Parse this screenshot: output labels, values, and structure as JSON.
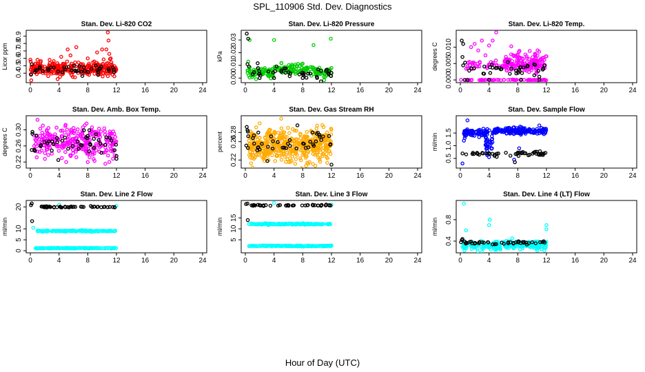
{
  "figure": {
    "title": "SPL_110906  Std. Dev. Diagnostics",
    "xlabel": "Hour of Day (UTC)"
  },
  "chart_data": [
    {
      "type": "scatter",
      "title": "Stan. Dev. Li-820 CO2",
      "ylabel": "Licor ppm",
      "xlim": [
        0,
        24
      ],
      "ylim": [
        0.3,
        0.95
      ],
      "xticks": [
        "0",
        "4",
        "8",
        "12",
        "16",
        "20",
        "24"
      ],
      "yticks": [
        {
          "v": 0.4,
          "label": "0.4"
        },
        {
          "v": 0.5,
          "label": "0.5"
        },
        {
          "v": 0.6,
          "label": "0.6"
        },
        {
          "v": 0.7,
          "label": "0.7"
        },
        {
          "v": 0.8,
          "label": "0.8"
        },
        {
          "v": 0.9,
          "label": "0.9"
        }
      ],
      "series": [
        {
          "name": "colored",
          "color": "#ff0000",
          "clusters": [
            {
              "x0": 0,
              "x1": 12,
              "y": 0.46,
              "sd": 0.045,
              "n": 300
            }
          ],
          "points": [
            [
              1.0,
              0.58
            ],
            [
              2.5,
              0.36
            ],
            [
              4.3,
              0.62
            ],
            [
              5.2,
              0.72
            ],
            [
              5.6,
              0.64
            ],
            [
              6.4,
              0.75
            ],
            [
              8.0,
              0.6
            ],
            [
              9.3,
              0.68
            ],
            [
              10.0,
              0.72
            ],
            [
              10.6,
              0.72
            ],
            [
              10.8,
              0.95
            ],
            [
              10.9,
              0.84
            ],
            [
              11.0,
              0.66
            ],
            [
              11.2,
              0.6
            ],
            [
              3.8,
              0.32
            ]
          ]
        },
        {
          "name": "black",
          "color": "#000000",
          "clusters": [
            {
              "x0": 0,
              "x1": 12,
              "y": 0.45,
              "sd": 0.03,
              "n": 40
            }
          ],
          "points": [
            [
              0.1,
              0.38
            ],
            [
              0.2,
              0.52
            ]
          ]
        }
      ]
    },
    {
      "type": "scatter",
      "title": "Stan. Dev. Li-820 Pressure",
      "ylabel": "kPa",
      "xlim": [
        0,
        24
      ],
      "ylim": [
        -0.002,
        0.036
      ],
      "xticks": [
        "0",
        "4",
        "8",
        "12",
        "16",
        "20",
        "24"
      ],
      "yticks": [
        {
          "v": 0.0,
          "label": "0.00"
        },
        {
          "v": 0.01,
          "label": "0.01"
        },
        {
          "v": 0.02,
          "label": "0.02"
        },
        {
          "v": 0.03,
          "label": "0.03"
        }
      ],
      "series": [
        {
          "name": "colored",
          "color": "#00cc00",
          "clusters": [
            {
              "x0": 0.3,
              "x1": 4,
              "y": 0.004,
              "sd": 0.002,
              "n": 60
            },
            {
              "x0": 4,
              "x1": 9.5,
              "y": 0.007,
              "sd": 0.002,
              "n": 90
            },
            {
              "x0": 9.5,
              "x1": 12,
              "y": 0.004,
              "sd": 0.002,
              "n": 40
            }
          ],
          "points": [
            [
              0.4,
              0.013
            ],
            [
              0.6,
              0.03
            ],
            [
              4.0,
              0.03
            ],
            [
              6.5,
              0.009
            ],
            [
              9.5,
              0.026
            ],
            [
              11.9,
              0.031
            ],
            [
              12.0,
              0.008
            ]
          ]
        },
        {
          "name": "black",
          "color": "#000000",
          "clusters": [
            {
              "x0": 0.5,
              "x1": 12,
              "y": 0.004,
              "sd": 0.0025,
              "n": 40
            }
          ],
          "points": [
            [
              0.2,
              0.035
            ],
            [
              0.4,
              0.031
            ],
            [
              0.3,
              0.011
            ],
            [
              0.5,
              0.009
            ],
            [
              2.0,
              0.0
            ],
            [
              4.0,
              0.0
            ],
            [
              8.0,
              0.0
            ],
            [
              10.0,
              0.0
            ],
            [
              12.0,
              0.004
            ]
          ]
        }
      ]
    },
    {
      "type": "scatter",
      "title": "Stan. Dev. Li-820 Temp.",
      "ylabel": "degrees C",
      "xlim": [
        0,
        24
      ],
      "ylim": [
        -0.0002,
        0.0145
      ],
      "xticks": [
        "0",
        "4",
        "8",
        "12",
        "16",
        "20",
        "24"
      ],
      "yticks": [
        {
          "v": 0.0,
          "label": "0.000"
        },
        {
          "v": 0.005,
          "label": "0.005"
        },
        {
          "v": 0.01,
          "label": "0.010"
        }
      ],
      "series": [
        {
          "name": "colored",
          "color": "#ff00ff",
          "clusters": [
            {
              "x0": 0.8,
              "x1": 12,
              "y": 0.0045,
              "sd": 0.0006,
              "n": 90
            },
            {
              "x0": 6,
              "x1": 12,
              "y": 0.0055,
              "sd": 0.0015,
              "n": 120
            },
            {
              "x0": 0,
              "x1": 12,
              "y": 0.0,
              "sd": 5e-05,
              "n": 70
            }
          ],
          "points": [
            [
              1.5,
              0.01
            ],
            [
              2.0,
              0.011
            ],
            [
              3.0,
              0.012
            ],
            [
              3.5,
              0.0075
            ],
            [
              4.0,
              0.0105
            ],
            [
              5.0,
              0.0145
            ],
            [
              4.5,
              0.012
            ],
            [
              2.5,
              0.009
            ]
          ]
        },
        {
          "name": "black",
          "color": "#000000",
          "clusters": [
            {
              "x0": 0,
              "x1": 12,
              "y": 0.0035,
              "sd": 0.0012,
              "n": 40
            }
          ],
          "points": [
            [
              0.2,
              0.012
            ],
            [
              0.4,
              0.011
            ],
            [
              0.3,
              0.007
            ],
            [
              0.6,
              0.0
            ],
            [
              11.0,
              0.0
            ],
            [
              1.0,
              0.0
            ],
            [
              4.0,
              0.0
            ]
          ]
        }
      ]
    },
    {
      "type": "scatter",
      "title": "Stan. Dev. Amb. Box Temp.",
      "ylabel": "degrees C",
      "xlim": [
        0,
        24
      ],
      "ylim": [
        0.21,
        0.33
      ],
      "xticks": [
        "0",
        "4",
        "8",
        "12",
        "16",
        "20",
        "24"
      ],
      "yticks": [
        {
          "v": 0.22,
          "label": "0.22"
        },
        {
          "v": 0.26,
          "label": "0.26"
        },
        {
          "v": 0.3,
          "label": "0.30"
        }
      ],
      "series": [
        {
          "name": "colored",
          "color": "#ff00ff",
          "clusters": [
            {
              "x0": 0.5,
              "x1": 12,
              "y": 0.268,
              "sd": 0.02,
              "n": 280
            }
          ],
          "points": [
            [
              1.0,
              0.325
            ],
            [
              5.0,
              0.22
            ],
            [
              8.0,
              0.22
            ],
            [
              11.0,
              0.22
            ]
          ]
        },
        {
          "name": "black",
          "color": "#000000",
          "clusters": [
            {
              "x0": 0,
              "x1": 12,
              "y": 0.265,
              "sd": 0.015,
              "n": 40
            }
          ],
          "points": [
            [
              0.3,
              0.295
            ],
            [
              0.3,
              0.29
            ],
            [
              0.2,
              0.25
            ],
            [
              3.9,
              0.225
            ],
            [
              8.0,
              0.285
            ],
            [
              12.0,
              0.235
            ],
            [
              12.0,
              0.228
            ]
          ]
        }
      ]
    },
    {
      "type": "scatter",
      "title": "Stan. Dev. Gas Stream RH",
      "ylabel": "percent",
      "xlim": [
        0,
        24
      ],
      "ylim": [
        0.207,
        0.312
      ],
      "xticks": [
        "0",
        "4",
        "8",
        "12",
        "16",
        "20",
        "24"
      ],
      "yticks": [
        {
          "v": 0.22,
          "label": "0.22"
        },
        {
          "v": 0.26,
          "label": "0.26"
        },
        {
          "v": 0.28,
          "label": "0.28"
        }
      ],
      "series": [
        {
          "name": "colored",
          "color": "#ffaa00",
          "clusters": [
            {
              "x0": 0.5,
              "x1": 12,
              "y": 0.252,
              "sd": 0.017,
              "n": 460
            }
          ],
          "points": [
            [
              2.0,
              0.3
            ],
            [
              5.0,
              0.31
            ],
            [
              10.0,
              0.295
            ]
          ]
        },
        {
          "name": "black",
          "color": "#000000",
          "clusters": [
            {
              "x0": 0,
              "x1": 12,
              "y": 0.255,
              "sd": 0.015,
              "n": 45
            }
          ],
          "points": [
            [
              0.2,
              0.292
            ],
            [
              0.3,
              0.285
            ],
            [
              12.0,
              0.21
            ]
          ]
        }
      ]
    },
    {
      "type": "scatter",
      "title": "Stan. Dev. Sample Flow",
      "ylabel": "ml/min",
      "xlim": [
        0,
        24
      ],
      "ylim": [
        0.2,
        2.1
      ],
      "xticks": [
        "0",
        "4",
        "8",
        "12",
        "16",
        "20",
        "24"
      ],
      "yticks": [
        {
          "v": 0.5,
          "label": "0.5"
        },
        {
          "v": 1.0,
          "label": "1.0"
        },
        {
          "v": 1.5,
          "label": "1.5"
        }
      ],
      "series": [
        {
          "name": "colored",
          "color": "#0000ff",
          "clusters": [
            {
              "x0": 0.5,
              "x1": 3.8,
              "y": 1.5,
              "sd": 0.08,
              "n": 90
            },
            {
              "x0": 4.5,
              "x1": 12,
              "y": 1.58,
              "sd": 0.07,
              "n": 170
            },
            {
              "x0": 3.5,
              "x1": 4.5,
              "y": 1.0,
              "sd": 0.25,
              "n": 30
            }
          ],
          "points": [
            [
              1.0,
              2.0
            ],
            [
              0.3,
              0.3
            ],
            [
              7.5,
              0.45
            ],
            [
              8.2,
              0.9
            ],
            [
              11.0,
              1.8
            ],
            [
              0.5,
              1.2
            ],
            [
              4.0,
              0.55
            ]
          ]
        },
        {
          "name": "black",
          "color": "#000000",
          "clusters": [
            {
              "x0": 0,
              "x1": 12,
              "y": 0.68,
              "sd": 0.04,
              "n": 55
            }
          ],
          "points": [
            [
              7.6,
              0.35
            ]
          ]
        }
      ]
    },
    {
      "type": "scatter",
      "title": "Stan. Dev. Line 2 Flow",
      "ylabel": "ml/min",
      "xlim": [
        0,
        24
      ],
      "ylim": [
        0,
        22
      ],
      "xticks": [
        "0",
        "4",
        "8",
        "12",
        "16",
        "20",
        "24"
      ],
      "yticks": [
        {
          "v": 0,
          "label": "0"
        },
        {
          "v": 5,
          "label": "5"
        },
        {
          "v": 10,
          "label": "10"
        },
        {
          "v": 20,
          "label": "20"
        }
      ],
      "series": [
        {
          "name": "colored",
          "color": "#00ffff",
          "clusters": [
            {
              "x0": 0.7,
              "x1": 12,
              "y": 9.0,
              "sd": 0.15,
              "n": 140
            },
            {
              "x0": 0.7,
              "x1": 12,
              "y": 1.2,
              "sd": 0.08,
              "n": 160
            }
          ],
          "points": [
            [
              0.4,
              10.5
            ],
            [
              4.0,
              21.0
            ],
            [
              12.0,
              20.5
            ]
          ]
        },
        {
          "name": "black",
          "color": "#000000",
          "clusters": [
            {
              "x0": 0.8,
              "x1": 12,
              "y": 20.0,
              "sd": 0.15,
              "n": 45
            }
          ],
          "points": [
            [
              0.1,
              20.8
            ],
            [
              0.2,
              21.6
            ],
            [
              0.25,
              13.5
            ]
          ]
        }
      ]
    },
    {
      "type": "scatter",
      "title": "Stan. Dev. Line 3 Flow",
      "ylabel": "ml/min",
      "xlim": [
        0,
        24
      ],
      "ylim": [
        0,
        22
      ],
      "xticks": [
        "0",
        "4",
        "8",
        "12",
        "16",
        "20",
        "24"
      ],
      "yticks": [
        {
          "v": 5,
          "label": "5"
        },
        {
          "v": 10,
          "label": "10"
        },
        {
          "v": 15,
          "label": "15"
        }
      ],
      "series": [
        {
          "name": "colored",
          "color": "#00ffff",
          "clusters": [
            {
              "x0": 0.5,
              "x1": 12,
              "y": 12.2,
              "sd": 0.15,
              "n": 150
            },
            {
              "x0": 0.5,
              "x1": 12,
              "y": 2.2,
              "sd": 0.1,
              "n": 160
            }
          ],
          "points": [
            [
              4.0,
              21.8
            ],
            [
              12.0,
              21.0
            ]
          ]
        },
        {
          "name": "black",
          "color": "#000000",
          "clusters": [
            {
              "x0": 0.5,
              "x1": 12,
              "y": 20.7,
              "sd": 0.15,
              "n": 45
            }
          ],
          "points": [
            [
              0.1,
              21.3
            ],
            [
              0.3,
              21.5
            ],
            [
              0.35,
              14.0
            ]
          ]
        }
      ]
    },
    {
      "type": "scatter",
      "title": "Stan. Dev. Line 4 (LT) Flow",
      "ylabel": "ml/min",
      "xlim": [
        0,
        24
      ],
      "ylim": [
        0.22,
        1.12
      ],
      "xticks": [
        "0",
        "4",
        "8",
        "12",
        "16",
        "20",
        "24"
      ],
      "yticks": [
        {
          "v": 0.4,
          "label": "0.4"
        },
        {
          "v": 0.8,
          "label": "0.8"
        }
      ],
      "series": [
        {
          "name": "colored",
          "color": "#00ffff",
          "clusters": [
            {
              "x0": 0.3,
              "x1": 12,
              "y": 0.31,
              "sd": 0.04,
              "n": 180
            },
            {
              "x0": 6,
              "x1": 12,
              "y": 0.36,
              "sd": 0.03,
              "n": 60
            }
          ],
          "points": [
            [
              0.5,
              1.1
            ],
            [
              0.8,
              0.6
            ],
            [
              4.0,
              0.7
            ],
            [
              4.1,
              0.8
            ],
            [
              12.0,
              0.7
            ],
            [
              12.0,
              0.62
            ]
          ]
        },
        {
          "name": "black",
          "color": "#000000",
          "clusters": [
            {
              "x0": 0.5,
              "x1": 12,
              "y": 0.37,
              "sd": 0.015,
              "n": 45
            }
          ],
          "points": [
            [
              0.2,
              0.42
            ],
            [
              0.3,
              0.44
            ],
            [
              0.1,
              0.38
            ]
          ]
        }
      ]
    }
  ]
}
